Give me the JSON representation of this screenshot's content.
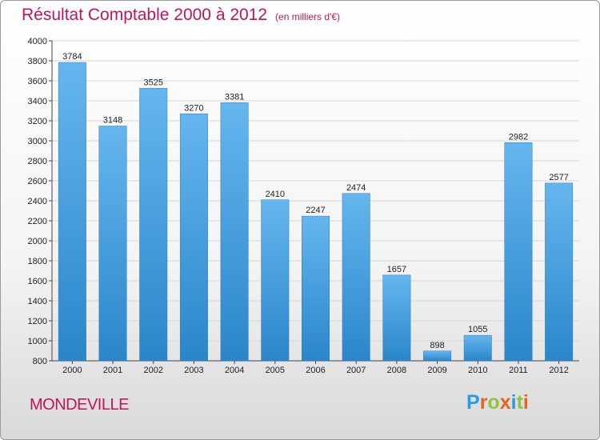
{
  "header": {
    "title": "Résultat Comptable 2000 à 2012",
    "unit": "(en milliers d'€)"
  },
  "footer": {
    "city": "MONDEVILLE",
    "logo": [
      "P",
      "r",
      "o",
      "x",
      "i",
      "t",
      "i"
    ],
    "logo_colors": [
      "#2a9be0",
      "#e8641e",
      "#8cc63f",
      "#e8641e",
      "#2a9be0",
      "#8cc63f",
      "#e8641e"
    ]
  },
  "colors": {
    "title": "#c0145c",
    "bar_top": "#66b6ee",
    "bar_bottom": "#2a86c9",
    "grid": "#d6d6d6"
  },
  "chart_data": {
    "type": "bar",
    "categories": [
      "2000",
      "2001",
      "2002",
      "2003",
      "2004",
      "2005",
      "2006",
      "2007",
      "2008",
      "2009",
      "2010",
      "2011",
      "2012"
    ],
    "values": [
      3784,
      3148,
      3525,
      3270,
      3381,
      2410,
      2247,
      2474,
      1657,
      898,
      1055,
      2982,
      2577
    ],
    "ylim": [
      800,
      4000
    ],
    "ytick_step": 200,
    "grid": true,
    "title": "Résultat Comptable 2000 à 2012",
    "xlabel": "",
    "ylabel": ""
  }
}
